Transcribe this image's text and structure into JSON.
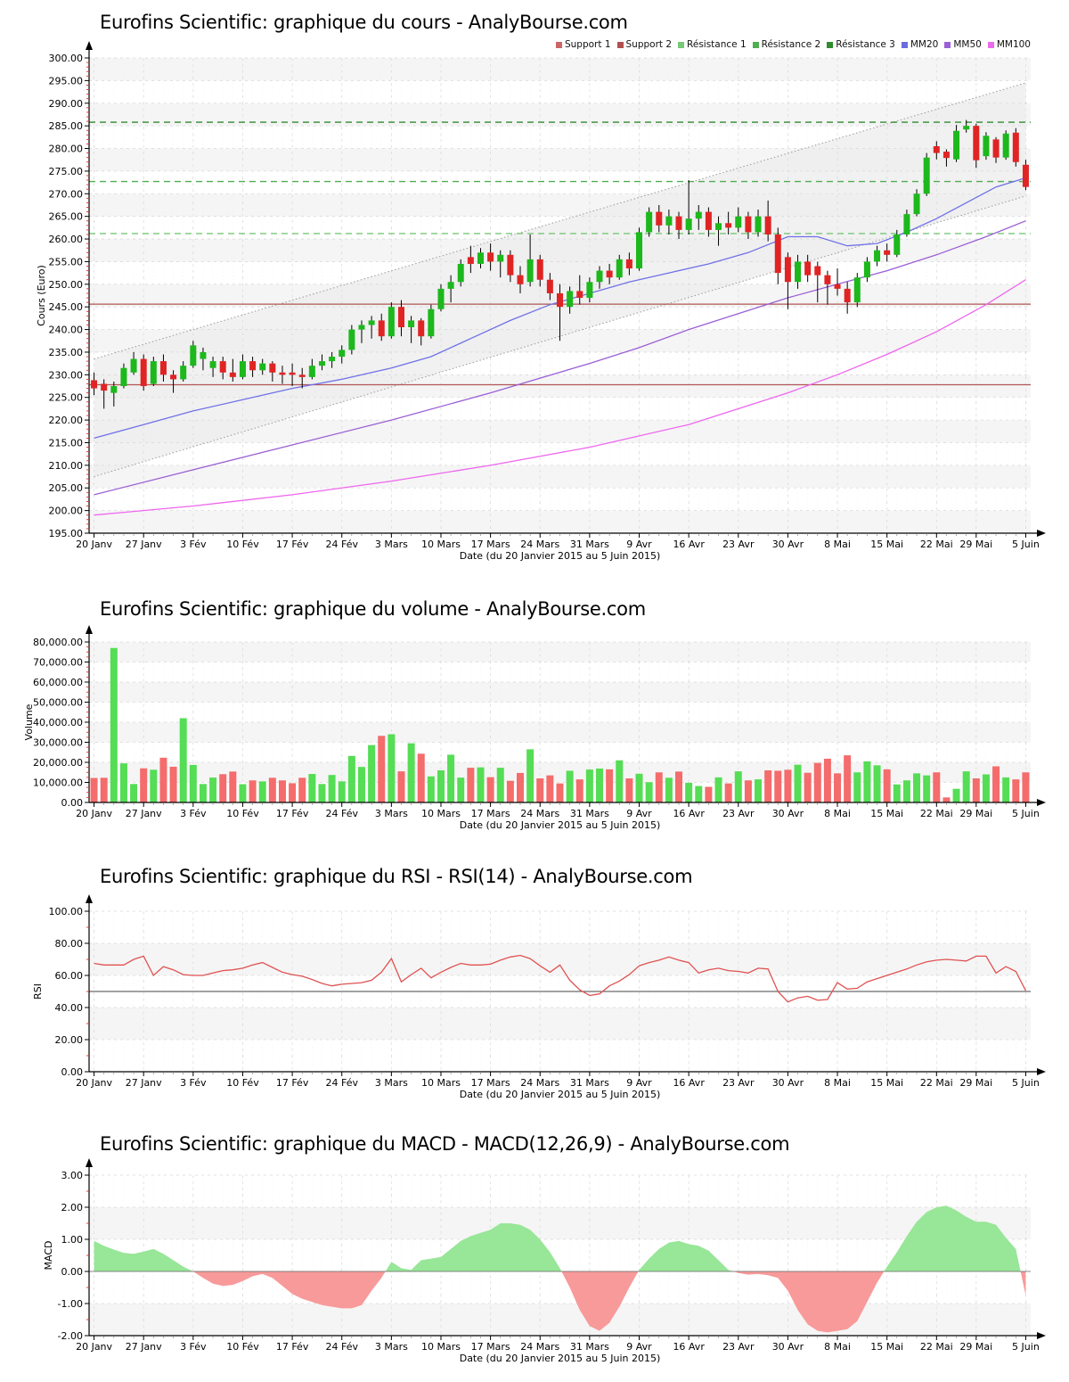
{
  "site": "AnalyBourse.com",
  "instrument": "Eurofins Scientific",
  "x_axis": {
    "label": "Date (du 20 Janvier 2015 au 5 Juin 2015)",
    "tick_labels": [
      "20 Janv",
      "27 Janv",
      "3 Fév",
      "10 Fév",
      "17 Fév",
      "24 Fév",
      "3 Mars",
      "10 Mars",
      "17 Mars",
      "24 Mars",
      "31 Mars",
      "9 Avr",
      "16 Avr",
      "23 Avr",
      "30 Avr",
      "8 Mai",
      "15 Mai",
      "22 Mai",
      "29 Mai",
      "5 Juin"
    ],
    "tick_indices": [
      0,
      5,
      10,
      15,
      20,
      25,
      30,
      35,
      40,
      45,
      50,
      55,
      60,
      65,
      70,
      75,
      80,
      85,
      89,
      94
    ]
  },
  "colors": {
    "candle_up": "#1cb81c",
    "candle_down": "#e02424",
    "volume_up": "#55dd55",
    "volume_down": "#f46c6c",
    "macd_pos": "#98e698",
    "macd_neg": "#f89a9a",
    "rsi_line": "#e05252",
    "support": "#b25555",
    "resistance": "#4fae4f",
    "mm20": "#7070e8",
    "mm50": "#9a5fd6",
    "mm100": "#ee66ee",
    "grid": "#d9d9d9",
    "band": "#f5f5f5",
    "channel_fill": "#ececec",
    "channel_line": "#9a9a9a",
    "minor_tick": "#cc3333"
  },
  "chart_data": [
    {
      "type": "candlestick",
      "title": "Eurofins Scientific: graphique du cours - AnalyBourse.com",
      "ylabel": "Cours (Euro)",
      "xlabel": "Date (du 20 Janvier 2015 au 5 Juin 2015)",
      "ylim": [
        195,
        300
      ],
      "ystep": 5,
      "yminor": 1,
      "legend": [
        {
          "label": "Support 1",
          "color": "#cc6666"
        },
        {
          "label": "Support 2",
          "color": "#b14f4f"
        },
        {
          "label": "Résistance 1",
          "color": "#77c877"
        },
        {
          "label": "Résistance 2",
          "color": "#4fae4f"
        },
        {
          "label": "Résistance 3",
          "color": "#2f8b2f"
        },
        {
          "label": "MM20",
          "color": "#6b6be0"
        },
        {
          "label": "MM50",
          "color": "#9a5fd6"
        },
        {
          "label": "MM100",
          "color": "#ec6bec"
        }
      ],
      "supports": [
        {
          "name": "Support 1",
          "value": 245.6
        },
        {
          "name": "Support 2",
          "value": 227.8
        }
      ],
      "resistances": [
        {
          "name": "Résistance 1",
          "value": 261.2,
          "color": "#77c877"
        },
        {
          "name": "Résistance 2",
          "value": 272.7,
          "color": "#4fae4f"
        },
        {
          "name": "Résistance 3",
          "value": 285.8,
          "color": "#2f8b2f"
        }
      ],
      "channel": {
        "lower_start": 207.5,
        "lower_end": 269.5,
        "upper_start": 233.5,
        "upper_end": 294.5
      },
      "mm20_anchors": [
        [
          0,
          216
        ],
        [
          5,
          219
        ],
        [
          10,
          222
        ],
        [
          15,
          224.5
        ],
        [
          20,
          227
        ],
        [
          25,
          229
        ],
        [
          30,
          231.5
        ],
        [
          34,
          234
        ],
        [
          38,
          238
        ],
        [
          42,
          242
        ],
        [
          46,
          245.5
        ],
        [
          50,
          248
        ],
        [
          54,
          250.5
        ],
        [
          58,
          252.5
        ],
        [
          62,
          254.5
        ],
        [
          66,
          257
        ],
        [
          70,
          260.5
        ],
        [
          73,
          260.5
        ],
        [
          76,
          258.5
        ],
        [
          79,
          259
        ],
        [
          82,
          261.5
        ],
        [
          85,
          264.5
        ],
        [
          88,
          268
        ],
        [
          91,
          271.5
        ],
        [
          94,
          273.5
        ]
      ],
      "mm50_anchors": [
        [
          0,
          203.5
        ],
        [
          10,
          209
        ],
        [
          20,
          214.5
        ],
        [
          30,
          220
        ],
        [
          40,
          226
        ],
        [
          50,
          232.5
        ],
        [
          55,
          236
        ],
        [
          60,
          240
        ],
        [
          65,
          243.5
        ],
        [
          70,
          247
        ],
        [
          75,
          250
        ],
        [
          80,
          253
        ],
        [
          85,
          256.5
        ],
        [
          90,
          260.5
        ],
        [
          94,
          264
        ]
      ],
      "mm100_anchors": [
        [
          0,
          199
        ],
        [
          10,
          201
        ],
        [
          20,
          203.5
        ],
        [
          30,
          206.5
        ],
        [
          40,
          210
        ],
        [
          50,
          214
        ],
        [
          60,
          219
        ],
        [
          70,
          226
        ],
        [
          75,
          230
        ],
        [
          80,
          234.5
        ],
        [
          85,
          239.5
        ],
        [
          90,
          245.5
        ],
        [
          94,
          251
        ]
      ],
      "candles_ohlc": [
        [
          228.8,
          230.5,
          225.5,
          227.0
        ],
        [
          228.0,
          229.0,
          222.5,
          226.5
        ],
        [
          226.0,
          228.5,
          223.0,
          227.5
        ],
        [
          227.5,
          232.5,
          227.0,
          231.5
        ],
        [
          230.5,
          235.0,
          230.0,
          233.5
        ],
        [
          233.5,
          234.5,
          226.5,
          227.5
        ],
        [
          228.0,
          234.0,
          227.5,
          233.0
        ],
        [
          233.0,
          234.5,
          228.5,
          230.0
        ],
        [
          230.0,
          231.0,
          226.0,
          229.0
        ],
        [
          229.0,
          233.0,
          228.5,
          232.0
        ],
        [
          232.0,
          237.5,
          231.5,
          236.5
        ],
        [
          233.5,
          236.0,
          231.0,
          235.0
        ],
        [
          231.5,
          234.0,
          229.5,
          233.0
        ],
        [
          233.0,
          234.0,
          229.0,
          230.5
        ],
        [
          230.5,
          233.5,
          228.5,
          229.5
        ],
        [
          229.5,
          234.5,
          229.0,
          233.0
        ],
        [
          233.0,
          234.0,
          229.5,
          231.0
        ],
        [
          231.0,
          233.5,
          230.0,
          232.5
        ],
        [
          232.5,
          233.0,
          228.5,
          230.5
        ],
        [
          230.5,
          232.0,
          228.0,
          230.0
        ],
        [
          230.5,
          232.5,
          227.5,
          230.0
        ],
        [
          230.0,
          231.5,
          227.0,
          229.5
        ],
        [
          229.5,
          233.5,
          229.0,
          232.0
        ],
        [
          232.0,
          234.5,
          231.0,
          233.0
        ],
        [
          233.0,
          235.0,
          231.5,
          234.0
        ],
        [
          234.0,
          236.5,
          232.5,
          235.5
        ],
        [
          235.5,
          241.0,
          234.5,
          240.0
        ],
        [
          240.0,
          242.0,
          237.0,
          241.0
        ],
        [
          241.0,
          243.0,
          238.0,
          242.0
        ],
        [
          242.0,
          243.5,
          237.5,
          238.5
        ],
        [
          238.5,
          246.0,
          238.0,
          245.0
        ],
        [
          245.0,
          246.5,
          238.5,
          240.5
        ],
        [
          240.5,
          243.0,
          237.0,
          242.0
        ],
        [
          242.0,
          242.5,
          236.5,
          238.5
        ],
        [
          238.5,
          245.5,
          238.0,
          244.5
        ],
        [
          244.5,
          250.0,
          244.0,
          249.0
        ],
        [
          249.0,
          252.0,
          246.0,
          250.5
        ],
        [
          250.5,
          255.5,
          249.5,
          254.5
        ],
        [
          256.0,
          258.5,
          252.5,
          254.5
        ],
        [
          254.5,
          258.0,
          253.5,
          257.0
        ],
        [
          257.0,
          259.0,
          253.0,
          255.0
        ],
        [
          255.0,
          257.5,
          251.5,
          256.5
        ],
        [
          256.5,
          257.5,
          250.5,
          252.0
        ],
        [
          252.0,
          254.0,
          248.0,
          250.0
        ],
        [
          250.5,
          261.0,
          249.5,
          255.5
        ],
        [
          255.5,
          256.5,
          249.5,
          251.0
        ],
        [
          251.0,
          252.5,
          246.5,
          248.0
        ],
        [
          248.0,
          250.0,
          237.5,
          245.0
        ],
        [
          245.0,
          249.5,
          243.5,
          248.5
        ],
        [
          248.5,
          252.0,
          245.5,
          247.0
        ],
        [
          247.0,
          251.5,
          246.0,
          250.5
        ],
        [
          250.5,
          254.0,
          249.0,
          253.0
        ],
        [
          253.0,
          254.5,
          250.0,
          251.5
        ],
        [
          251.5,
          256.5,
          251.0,
          255.5
        ],
        [
          255.5,
          257.0,
          252.0,
          253.5
        ],
        [
          253.5,
          262.5,
          253.0,
          261.5
        ],
        [
          261.5,
          267.0,
          260.5,
          266.0
        ],
        [
          266.0,
          267.5,
          261.5,
          263.0
        ],
        [
          263.0,
          266.5,
          261.0,
          265.0
        ],
        [
          265.0,
          266.0,
          260.0,
          262.0
        ],
        [
          262.0,
          273.0,
          261.0,
          264.5
        ],
        [
          264.5,
          267.5,
          262.0,
          266.0
        ],
        [
          266.0,
          267.0,
          260.5,
          262.0
        ],
        [
          262.0,
          265.0,
          258.5,
          263.5
        ],
        [
          263.5,
          266.0,
          261.0,
          262.5
        ],
        [
          262.5,
          267.0,
          261.5,
          265.0
        ],
        [
          265.0,
          266.0,
          260.0,
          261.5
        ],
        [
          261.5,
          266.5,
          260.5,
          265.0
        ],
        [
          265.0,
          268.5,
          259.5,
          261.0
        ],
        [
          261.0,
          262.5,
          250.0,
          252.5
        ],
        [
          256.0,
          257.0,
          244.5,
          250.5
        ],
        [
          250.5,
          256.5,
          249.0,
          255.0
        ],
        [
          255.0,
          256.5,
          250.5,
          252.0
        ],
        [
          254.0,
          255.0,
          246.0,
          252.0
        ],
        [
          252.0,
          253.0,
          245.5,
          250.0
        ],
        [
          250.0,
          253.5,
          247.5,
          249.0
        ],
        [
          249.0,
          250.5,
          243.5,
          246.0
        ],
        [
          246.0,
          252.5,
          245.0,
          251.5
        ],
        [
          251.5,
          256.0,
          250.5,
          255.0
        ],
        [
          255.0,
          258.5,
          254.0,
          257.5
        ],
        [
          257.5,
          259.0,
          255.0,
          256.5
        ],
        [
          256.5,
          262.0,
          256.0,
          261.0
        ],
        [
          261.0,
          266.5,
          260.5,
          265.5
        ],
        [
          265.5,
          271.0,
          265.0,
          270.0
        ],
        [
          270.0,
          279.0,
          269.5,
          278.0
        ],
        [
          280.5,
          281.6,
          277.6,
          279.0
        ],
        [
          279.3,
          279.8,
          276.0,
          277.9
        ],
        [
          277.6,
          285.2,
          277.0,
          283.9
        ],
        [
          284.2,
          286.3,
          283.5,
          285.0
        ],
        [
          285.0,
          285.5,
          275.7,
          277.4
        ],
        [
          278.3,
          283.6,
          277.5,
          282.8
        ],
        [
          282.0,
          282.5,
          276.8,
          278.0
        ],
        [
          278.0,
          284.0,
          277.5,
          283.3
        ],
        [
          283.5,
          284.5,
          276.0,
          277.0
        ],
        [
          276.4,
          277.5,
          270.8,
          271.5
        ]
      ]
    },
    {
      "type": "bar",
      "title": "Eurofins Scientific: graphique du volume - AnalyBourse.com",
      "ylabel": "Volume",
      "xlabel": "Date (du 20 Janvier 2015 au 5 Juin 2015)",
      "ylim": [
        0,
        80000
      ],
      "ystep": 10000,
      "yminor": 2500,
      "values": [
        12200,
        12300,
        77000,
        19500,
        9200,
        17000,
        16300,
        22300,
        17800,
        42000,
        18700,
        9200,
        12400,
        14100,
        15400,
        9100,
        11000,
        10500,
        12300,
        11000,
        9600,
        12300,
        14200,
        9200,
        13700,
        10500,
        23200,
        17700,
        28600,
        33200,
        34000,
        15500,
        29500,
        24300,
        13000,
        16000,
        23800,
        12400,
        17300,
        17500,
        12600,
        17300,
        10800,
        14700,
        26500,
        12000,
        13500,
        9500,
        15800,
        11500,
        16400,
        16900,
        16500,
        21000,
        12000,
        14300,
        10100,
        15000,
        12300,
        15400,
        9800,
        8200,
        7800,
        12500,
        9500,
        15500,
        11000,
        11500,
        16000,
        15800,
        16300,
        18800,
        14800,
        19700,
        21800,
        14500,
        23500,
        15000,
        20500,
        18500,
        16500,
        9000,
        11000,
        14500,
        13500,
        15000,
        2500,
        6800,
        15500,
        12000,
        14000,
        18000,
        12500,
        11500,
        15000
      ]
    },
    {
      "type": "line",
      "title": "Eurofins Scientific: graphique du RSI - RSI(14) - AnalyBourse.com",
      "ylabel": "RSI",
      "xlabel": "Date (du 20 Janvier 2015 au 5 Juin 2015)",
      "ylim": [
        0,
        100
      ],
      "ystep": 20,
      "yminor": 10,
      "hline": 50,
      "values": [
        67.5,
        66.5,
        66.5,
        66.5,
        70,
        72,
        60,
        65.5,
        63.5,
        60.5,
        60,
        60,
        61.5,
        63,
        63.5,
        64.5,
        66.5,
        68,
        65,
        62,
        60.5,
        59.5,
        57.5,
        55,
        53.5,
        54.5,
        55,
        55.5,
        57,
        62,
        70.5,
        56,
        60.5,
        64.5,
        58.5,
        62,
        65,
        67.5,
        66.5,
        66.5,
        67,
        69.5,
        71.5,
        72.5,
        70.5,
        66,
        62,
        66.5,
        57,
        51,
        47.5,
        48.5,
        53.5,
        56.5,
        60.5,
        66,
        68,
        69.5,
        71.5,
        69.5,
        68,
        61.5,
        63.5,
        64.5,
        63,
        62.5,
        61.5,
        64.5,
        64,
        50,
        43.5,
        46,
        47,
        44.5,
        45,
        55.5,
        51.5,
        52,
        56,
        58,
        60,
        62,
        64,
        66.5,
        68.5,
        69.5,
        70,
        69.5,
        69,
        72,
        72,
        61.5,
        65.5,
        62.5,
        50.5
      ]
    },
    {
      "type": "area",
      "title": "Eurofins Scientific: graphique du MACD - MACD(12,26,9) - AnalyBourse.com",
      "ylabel": "MACD",
      "xlabel": "Date (du 20 Janvier 2015 au 5 Juin 2015)",
      "ylim": [
        -2,
        3
      ],
      "ystep": 1,
      "yminor": 0.5,
      "values": [
        0.95,
        0.8,
        0.68,
        0.58,
        0.55,
        0.62,
        0.7,
        0.55,
        0.35,
        0.15,
        0.0,
        -0.2,
        -0.38,
        -0.45,
        -0.42,
        -0.3,
        -0.15,
        -0.08,
        -0.2,
        -0.45,
        -0.7,
        -0.85,
        -0.95,
        -1.05,
        -1.1,
        -1.15,
        -1.15,
        -1.05,
        -0.6,
        -0.2,
        0.3,
        0.1,
        0.05,
        0.35,
        0.4,
        0.45,
        0.7,
        0.95,
        1.1,
        1.2,
        1.3,
        1.5,
        1.5,
        1.45,
        1.3,
        1.0,
        0.6,
        0.1,
        -0.5,
        -1.2,
        -1.7,
        -1.85,
        -1.6,
        -1.1,
        -0.5,
        0.05,
        0.4,
        0.7,
        0.9,
        0.95,
        0.85,
        0.8,
        0.65,
        0.35,
        0.05,
        -0.05,
        -0.1,
        -0.08,
        -0.12,
        -0.2,
        -0.6,
        -1.2,
        -1.65,
        -1.85,
        -1.9,
        -1.85,
        -1.8,
        -1.55,
        -0.95,
        -0.35,
        0.15,
        0.6,
        1.1,
        1.55,
        1.85,
        2.0,
        2.05,
        1.9,
        1.7,
        1.55,
        1.55,
        1.45,
        1.05,
        0.7,
        -0.75
      ]
    }
  ]
}
